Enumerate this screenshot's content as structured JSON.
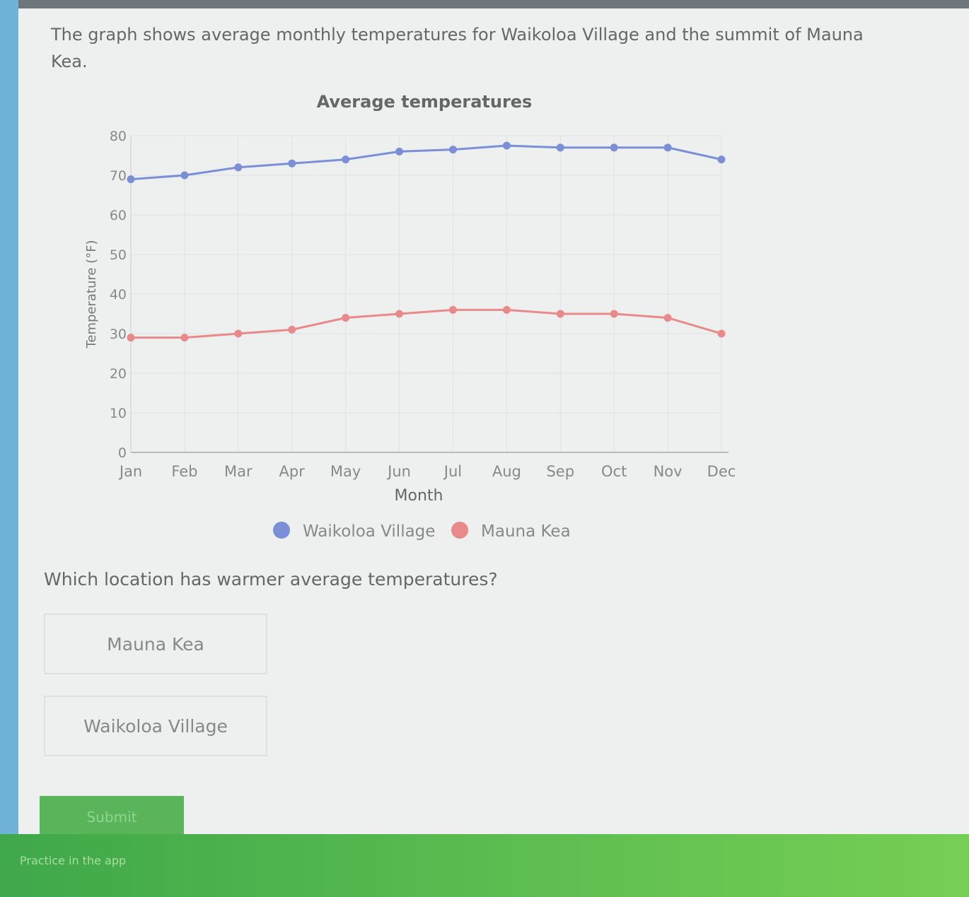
{
  "prompt": "The graph shows average monthly temperatures for Waikoloa Village and the summit of Mauna Kea.",
  "chart_data": {
    "type": "line",
    "title": "Average temperatures",
    "x_label": "Month",
    "y_label": "Temperature (°F)",
    "categories": [
      "Jan",
      "Feb",
      "Mar",
      "Apr",
      "May",
      "Jun",
      "Jul",
      "Aug",
      "Sep",
      "Oct",
      "Nov",
      "Dec"
    ],
    "series": [
      {
        "name": "Waikoloa Village",
        "color": "#7b8fd6",
        "values": [
          69,
          70,
          72,
          73,
          74,
          76,
          76.5,
          77.5,
          77,
          77,
          77,
          74
        ]
      },
      {
        "name": "Mauna Kea",
        "color": "#e88a8a",
        "values": [
          29,
          29,
          30,
          31,
          34,
          35,
          36,
          36,
          35,
          35,
          34,
          30
        ]
      }
    ],
    "ylim": [
      0,
      80
    ],
    "yticks": [
      0,
      10,
      20,
      30,
      40,
      50,
      60,
      70,
      80
    ],
    "grid": true
  },
  "question": "Which location has warmer average temperatures?",
  "choices": [
    "Mauna Kea",
    "Waikoloa Village"
  ],
  "submit": "Submit",
  "footer": "Practice in the app"
}
